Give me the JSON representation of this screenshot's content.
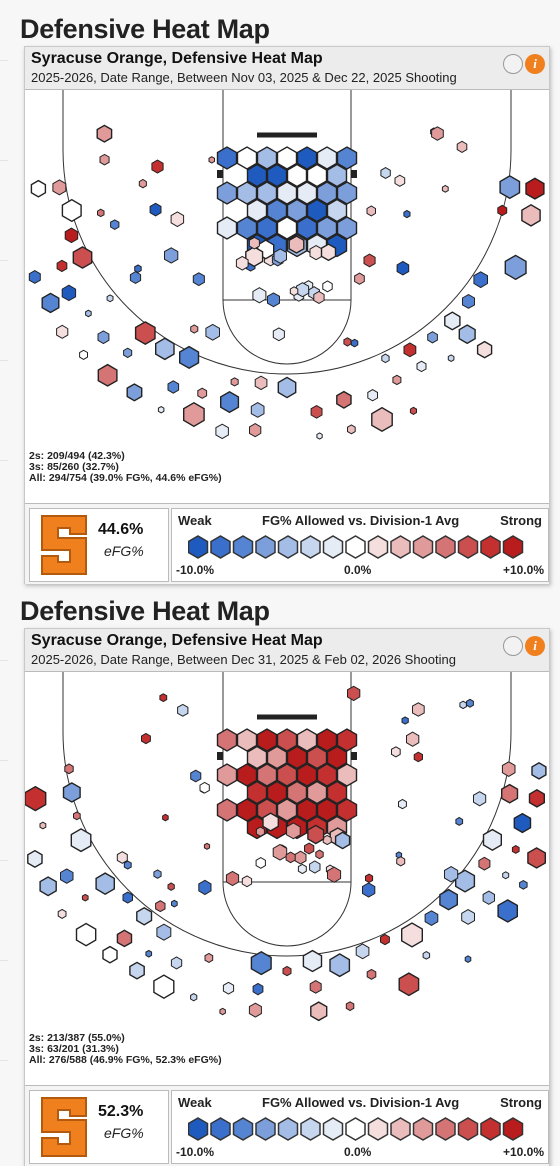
{
  "panels": [
    {
      "page_title": "Defensive Heat Map",
      "title": "Syracuse Orange, Defensive Heat Map",
      "subtitle": "2025-2026, Date Range, Between Nov 03, 2025 & Dec 22, 2025 Shooting",
      "stats": {
        "twos": "2s: 209/494 (42.3%)",
        "threes": "3s: 85/260 (32.7%)",
        "all": "All: 294/754 (39.0% FG%, 44.6% eFG%)"
      },
      "efg_value": "44.6%",
      "efg_label": "eFG%",
      "seed": 7,
      "rim_bias": -0.5
    },
    {
      "page_title": "Defensive Heat Map",
      "title": "Syracuse Orange, Defensive Heat Map",
      "subtitle": "2025-2026, Date Range, Between Dec 31, 2025 & Feb 02, 2026 Shooting",
      "stats": {
        "twos": "2s: 213/387 (55.0%)",
        "threes": "3s: 63/201 (31.3%)",
        "all": "All: 276/588 (46.9% FG%, 52.3% eFG%)"
      },
      "efg_value": "52.3%",
      "efg_label": "eFG%",
      "seed": 19,
      "rim_bias": 0.8
    }
  ],
  "legend": {
    "weak": "Weak",
    "strong": "Strong",
    "title": "FG% Allowed vs. Division-1 Avg",
    "tick_low": "-10.0%",
    "tick_mid": "0.0%",
    "tick_high": "+10.0%",
    "colors": [
      "#1f5bbf",
      "#3a6fcc",
      "#5584d2",
      "#7c9fdc",
      "#a3bde6",
      "#c7d6ef",
      "#e6ecf6",
      "#ffffff",
      "#f4dede",
      "#ebbcbc",
      "#e09a9a",
      "#d57474",
      "#cc4f4f",
      "#c43030",
      "#b81c1c"
    ]
  },
  "brand": {
    "orange": "#f07f1e",
    "logo_letter": "S"
  }
}
